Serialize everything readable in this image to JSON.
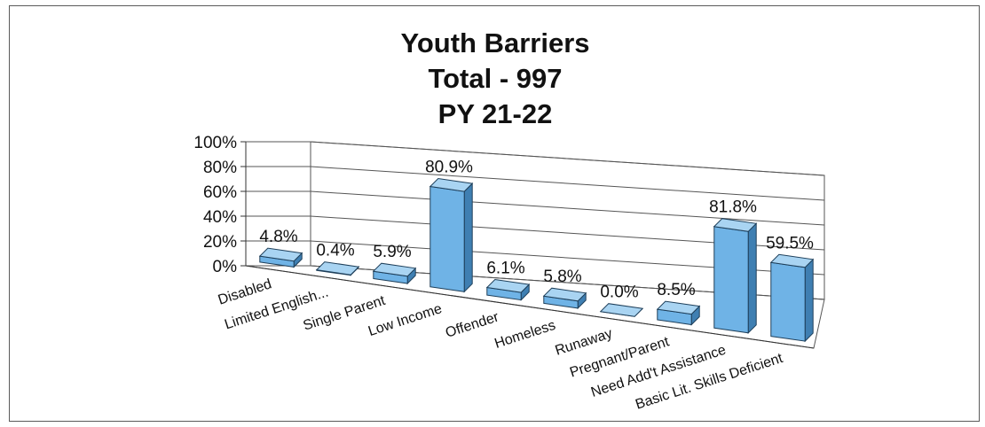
{
  "chart_data": {
    "type": "bar",
    "title": [
      "Youth Barriers",
      "Total - 997",
      "PY 21-22"
    ],
    "categories": [
      "Disabled",
      "Limited English...",
      "Single Parent",
      "Low Income",
      "Offender",
      "Homeless",
      "Runaway",
      "Pregnant/Parent",
      "Need Add't Assistance",
      "Basic Lit. Skills Deficient"
    ],
    "values": [
      4.8,
      0.4,
      5.9,
      80.9,
      6.1,
      5.8,
      0.0,
      8.5,
      81.8,
      59.5
    ],
    "data_labels": [
      "4.8%",
      "0.4%",
      "5.9%",
      "80.9%",
      "6.1%",
      "5.8%",
      "0.0%",
      "8.5%",
      "81.8%",
      "59.5%"
    ],
    "y_ticks": [
      "0%",
      "20%",
      "40%",
      "60%",
      "80%",
      "100%"
    ],
    "ylim": [
      0,
      100
    ],
    "grid": true,
    "style": "3d-column",
    "bar_color": "#6fb3e6",
    "bar_side_color": "#3f7fb2",
    "bar_top_color": "#a9d4f2",
    "xlabel": "",
    "ylabel": ""
  }
}
